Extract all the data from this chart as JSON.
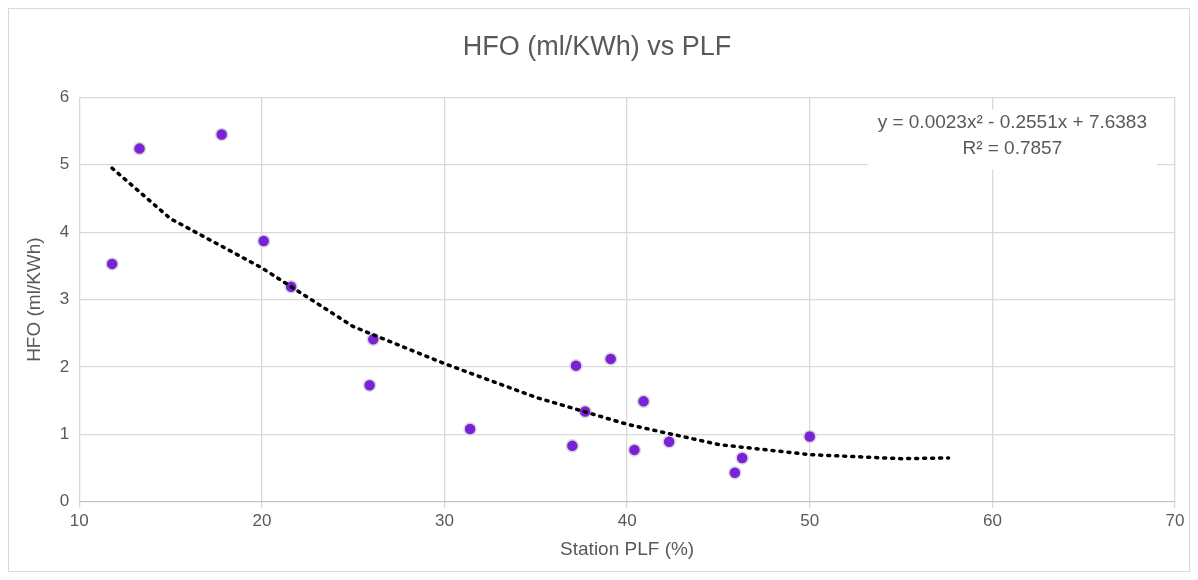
{
  "chart_data": {
    "type": "scatter",
    "title": "HFO (ml/KWh) vs PLF",
    "xlabel": "Station PLF (%)",
    "ylabel": "HFO (ml/KWh)",
    "xlim": [
      10,
      70
    ],
    "xticks": [
      10,
      20,
      30,
      40,
      50,
      60,
      70
    ],
    "ylim": [
      0,
      6
    ],
    "yticks": [
      0,
      1,
      2,
      3,
      4,
      5,
      6
    ],
    "grid": true,
    "legend": false,
    "marker": "circle",
    "series": [
      {
        "type": "scatter",
        "color": "#7b22d9",
        "x": [
          11.8,
          13.3,
          17.8,
          20.1,
          21.6,
          26.1,
          25.9,
          31.4,
          37.0,
          37.2,
          39.1,
          37.7,
          40.9,
          40.4,
          42.3,
          46.3,
          45.9,
          50.0
        ],
        "values": [
          3.53,
          5.24,
          5.45,
          3.87,
          3.19,
          2.41,
          1.73,
          1.08,
          0.83,
          2.02,
          2.12,
          1.34,
          1.49,
          0.77,
          0.89,
          0.65,
          0.43,
          0.97
        ]
      },
      {
        "type": "line",
        "color": "#000000",
        "line_style": "dotted",
        "marker": "none",
        "x": [
          11.8,
          15,
          20,
          25,
          30,
          35,
          40,
          45,
          50,
          55,
          57.6
        ],
        "values": [
          4.95,
          4.2,
          3.47,
          2.6,
          2.05,
          1.55,
          1.15,
          0.85,
          0.7,
          0.64,
          0.65
        ]
      }
    ],
    "annotations": [
      "y = 0.0023x² - 0.2551x + 7.6383",
      "R² = 0.7857"
    ]
  }
}
